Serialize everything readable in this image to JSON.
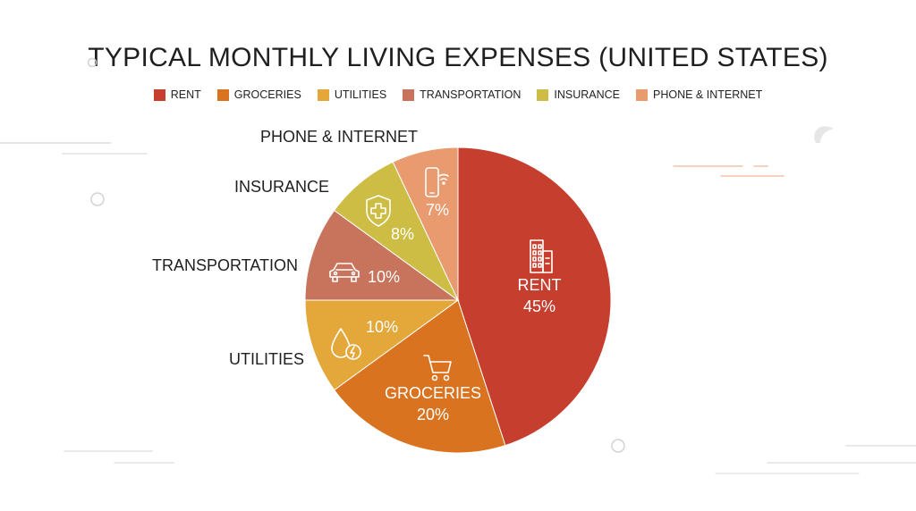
{
  "chart_data": {
    "type": "pie",
    "title": "TYPICAL MONTHLY LIVING EXPENSES (UNITED STATES)",
    "legend_position": "top",
    "slices": [
      {
        "label": "RENT",
        "value": 45,
        "value_label": "45%",
        "color": "#c63f2e",
        "icon": "building-icon"
      },
      {
        "label": "GROCERIES",
        "value": 20,
        "value_label": "20%",
        "color": "#d9731f",
        "icon": "shopping-cart-icon"
      },
      {
        "label": "UTILITIES",
        "value": 10,
        "value_label": "10%",
        "color": "#e3a73a",
        "icon": "water-energy-icon"
      },
      {
        "label": "TRANSPORTATION",
        "value": 10,
        "value_label": "10%",
        "color": "#c8735b",
        "icon": "car-icon"
      },
      {
        "label": "INSURANCE",
        "value": 8,
        "value_label": "8%",
        "color": "#cdbd45",
        "icon": "shield-plus-icon"
      },
      {
        "label": "PHONE & INTERNET",
        "value": 7,
        "value_label": "7%",
        "color": "#e99a6f",
        "icon": "phone-wifi-icon"
      }
    ]
  }
}
